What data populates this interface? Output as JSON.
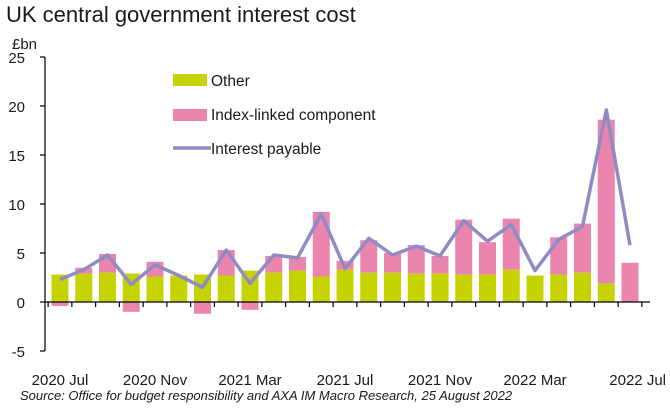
{
  "chart_data": {
    "type": "bar",
    "title": "UK central government interest cost",
    "ylabel": "£bn",
    "source": "Source: Office for budget responsibility and AXA IM Macro Research, 25 August 2022",
    "ylim": [
      -5,
      25
    ],
    "yticks": [
      -5,
      0,
      5,
      10,
      15,
      20,
      25
    ],
    "x_ticks": [
      "2020 Jul",
      "2020 Nov",
      "2021 Mar",
      "2021 Jul",
      "2021 Nov",
      "2022 Mar",
      "2022 Jul"
    ],
    "legend_position": "top-center",
    "stacked": true,
    "colors": {
      "other": "#c5d400",
      "index": "#ec85ad",
      "line": "#8f8cc4"
    },
    "categories": [
      "2020-07",
      "2020-08",
      "2020-09",
      "2020-10",
      "2020-11",
      "2020-12",
      "2021-01",
      "2021-02",
      "2021-03",
      "2021-04",
      "2021-05",
      "2021-06",
      "2021-07",
      "2021-08",
      "2021-09",
      "2021-10",
      "2021-11",
      "2021-12",
      "2022-01",
      "2022-02",
      "2022-03",
      "2022-04",
      "2022-05",
      "2022-06",
      "2022-07"
    ],
    "series": [
      {
        "name": "Other",
        "kind": "bar",
        "values": [
          2.8,
          2.9,
          3.0,
          2.9,
          2.6,
          2.7,
          2.8,
          2.7,
          3.2,
          3.0,
          3.2,
          2.6,
          3.3,
          3.0,
          3.0,
          2.9,
          2.9,
          2.8,
          2.8,
          3.3,
          2.7,
          2.8,
          3.0,
          1.9,
          0.0
        ]
      },
      {
        "name": "Index-linked component",
        "kind": "bar",
        "values": [
          -0.4,
          0.6,
          1.9,
          -1.0,
          1.5,
          0.0,
          -1.2,
          2.6,
          -0.8,
          1.7,
          1.4,
          6.6,
          0.9,
          3.3,
          2.0,
          2.9,
          1.8,
          5.6,
          3.3,
          5.2,
          0.0,
          3.8,
          5.0,
          16.7,
          4.0
        ]
      },
      {
        "name": "Interest payable",
        "kind": "line",
        "values": [
          2.3,
          3.3,
          4.8,
          1.8,
          3.8,
          2.7,
          1.5,
          5.3,
          1.9,
          4.8,
          4.5,
          9.0,
          3.4,
          6.5,
          4.8,
          5.7,
          4.7,
          8.3,
          6.2,
          7.9,
          3.2,
          6.4,
          7.7,
          19.6,
          5.8
        ]
      }
    ]
  }
}
